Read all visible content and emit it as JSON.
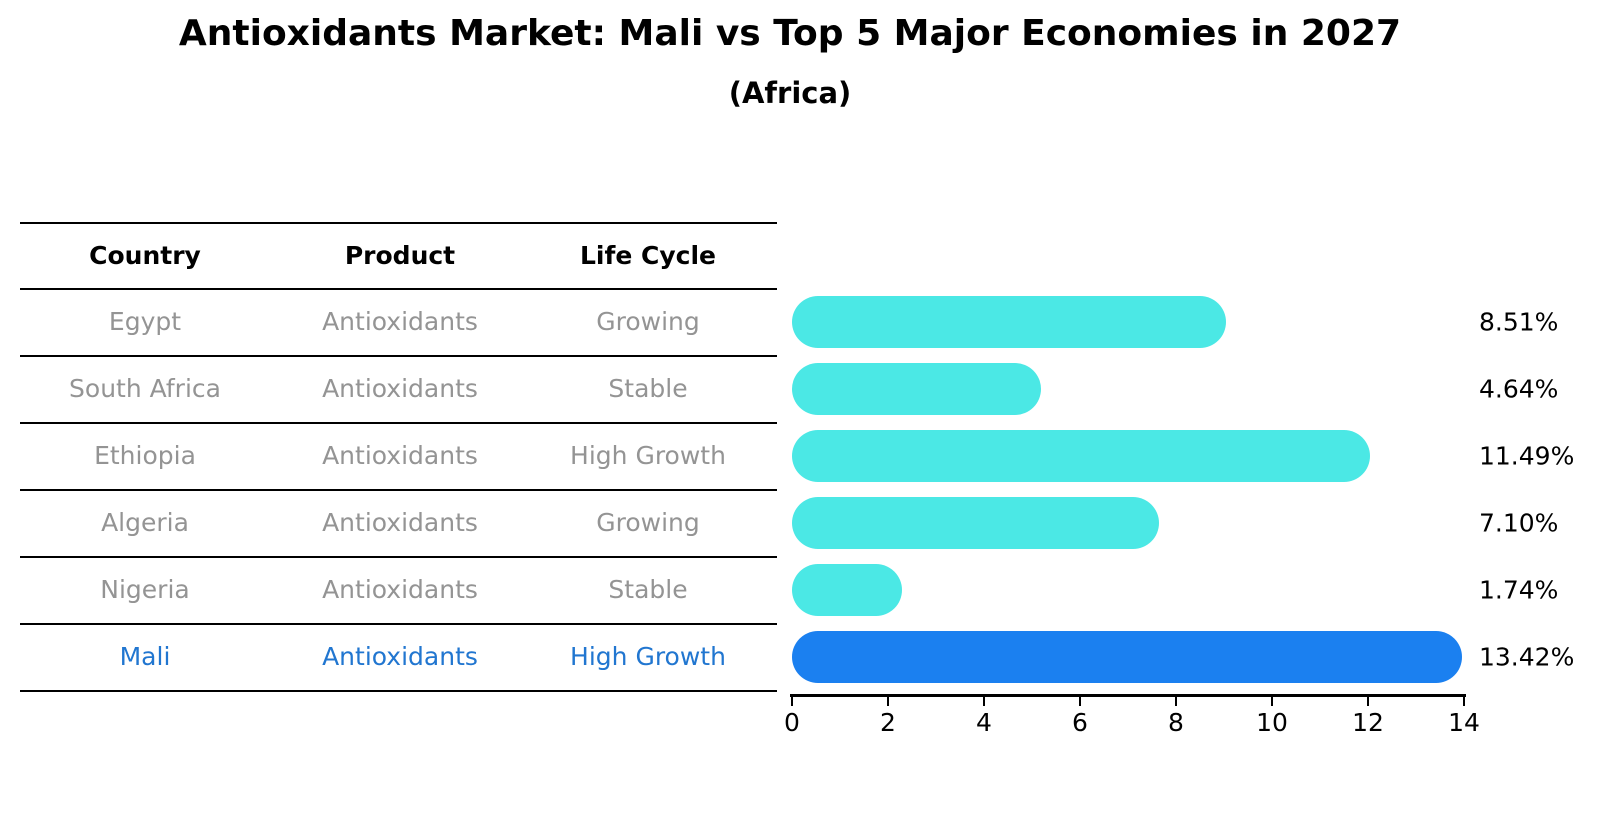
{
  "title": "Antioxidants Market: Mali vs Top 5 Major Economies in 2027",
  "subtitle": "(Africa)",
  "table": {
    "headers": [
      "Country",
      "Product",
      "Life Cycle"
    ],
    "rows": [
      {
        "country": "Egypt",
        "product": "Antioxidants",
        "life_cycle": "Growing",
        "highlight": false
      },
      {
        "country": "South Africa",
        "product": "Antioxidants",
        "life_cycle": "Stable",
        "highlight": false
      },
      {
        "country": "Ethiopia",
        "product": "Antioxidants",
        "life_cycle": "High Growth",
        "highlight": false
      },
      {
        "country": "Algeria",
        "product": "Antioxidants",
        "life_cycle": "Growing",
        "highlight": false
      },
      {
        "country": "Nigeria",
        "product": "Antioxidants",
        "life_cycle": "Stable",
        "highlight": false
      },
      {
        "country": "Mali",
        "product": "Antioxidants",
        "life_cycle": "High Growth",
        "highlight": true
      }
    ]
  },
  "chart_data": {
    "type": "bar",
    "orientation": "horizontal",
    "categories": [
      "Egypt",
      "South Africa",
      "Ethiopia",
      "Algeria",
      "Nigeria",
      "Mali"
    ],
    "values": [
      8.51,
      4.64,
      11.49,
      7.1,
      1.74,
      13.42
    ],
    "value_labels": [
      "8.51%",
      "4.64%",
      "11.49%",
      "7.10%",
      "1.74%",
      "13.42%"
    ],
    "highlight_index": 5,
    "xlim": [
      0,
      14
    ],
    "xticks": [
      0,
      2,
      4,
      6,
      8,
      10,
      12,
      14
    ],
    "xtick_labels": [
      "0",
      "2",
      "4",
      "6",
      "8",
      "10",
      "12",
      "14"
    ],
    "grid": false,
    "legend": false,
    "bar_color": "#4BE8E5",
    "highlight_bar_color": "#1B80F0",
    "highlight_text_color": "#2176D0",
    "row_text_color": "#949494",
    "axis_color": "#000000"
  }
}
